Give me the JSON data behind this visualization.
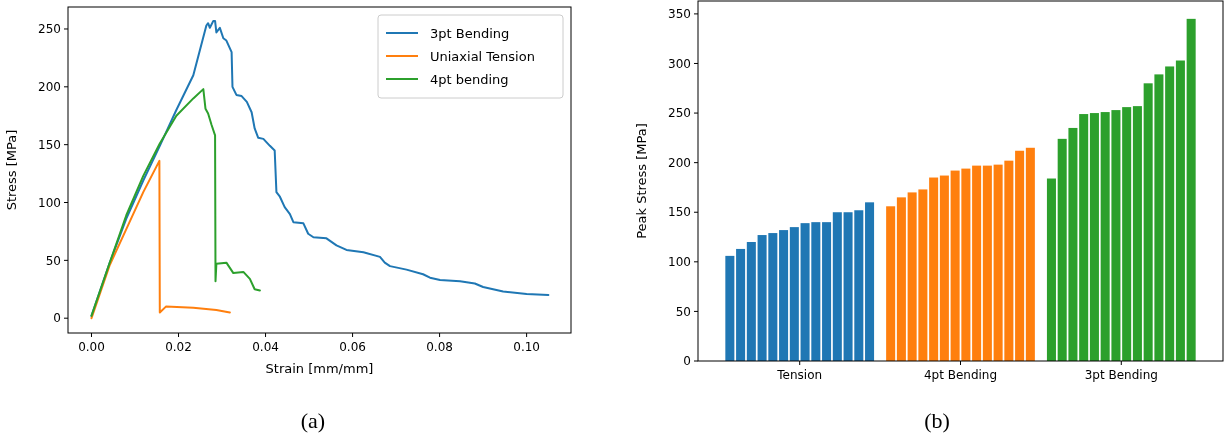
{
  "chart_data": [
    {
      "type": "line",
      "xlabel": "Strain [mm/mm]",
      "ylabel": "Stress [MPa]",
      "xlim": [
        -0.0054,
        0.1102
      ],
      "ylim": [
        -12.8,
        269
      ],
      "xticks": [
        {
          "value": 0,
          "label": "0.00"
        },
        {
          "value": 0.02,
          "label": "0.02"
        },
        {
          "value": 0.04,
          "label": "0.04"
        },
        {
          "value": 0.06,
          "label": "0.06"
        },
        {
          "value": 0.08,
          "label": "0.08"
        },
        {
          "value": 0.1,
          "label": "0.10"
        }
      ],
      "yticks": [
        0,
        50,
        100,
        150,
        200,
        250
      ],
      "legend": "top right",
      "annotations": [
        "(a)"
      ],
      "series": [
        {
          "name": "3pt Bending",
          "color": "#1f77b4",
          "x": [
            0,
            0.0042,
            0.008,
            0.0119,
            0.0157,
            0.0195,
            0.0234,
            0.0264,
            0.0268,
            0.0272,
            0.028,
            0.0284,
            0.0287,
            0.0295,
            0.0303,
            0.031,
            0.0322,
            0.0324,
            0.0333,
            0.0345,
            0.0357,
            0.0368,
            0.0375,
            0.0383,
            0.0395,
            0.041,
            0.0421,
            0.0425,
            0.0433,
            0.0444,
            0.0456,
            0.0464,
            0.0487,
            0.0498,
            0.051,
            0.054,
            0.0563,
            0.0586,
            0.0625,
            0.0663,
            0.0674,
            0.0686,
            0.0724,
            0.0762,
            0.0778,
            0.0801,
            0.0847,
            0.0881,
            0.09,
            0.0946,
            0.1,
            0.105
          ],
          "values": [
            2,
            48,
            86,
            119,
            149,
            180,
            210,
            253,
            255,
            251,
            257,
            257,
            247,
            251,
            242,
            240,
            230,
            200,
            193,
            192,
            187,
            178,
            164,
            156,
            155,
            149,
            145,
            109,
            105,
            96,
            90,
            83,
            82,
            73,
            70,
            69,
            63,
            59,
            57,
            53,
            48,
            45,
            42,
            38,
            35,
            33,
            32,
            30,
            27,
            23,
            21,
            20
          ]
        },
        {
          "name": "Uniaxial Tension",
          "color": "#ff7f0e",
          "x": [
            0,
            0.0042,
            0.008,
            0.0119,
            0.0156,
            0.0157,
            0.0171,
            0.0234,
            0.0287,
            0.0318
          ],
          "values": [
            0,
            46,
            77,
            109,
            136,
            5,
            10,
            9,
            7,
            5
          ]
        },
        {
          "name": "4pt bending",
          "color": "#2ca02c",
          "x": [
            0,
            0.0042,
            0.008,
            0.0119,
            0.0157,
            0.0195,
            0.0234,
            0.0257,
            0.0262,
            0.0268,
            0.0276,
            0.0284,
            0.0285,
            0.0287,
            0.031,
            0.0326,
            0.0349,
            0.0364,
            0.0375,
            0.0387
          ],
          "values": [
            2,
            48,
            89,
            123,
            151,
            175,
            190,
            198,
            181,
            177,
            167,
            158,
            32,
            47,
            48,
            39,
            40,
            34,
            25,
            24
          ]
        }
      ]
    },
    {
      "type": "bar",
      "ylabel": "Peak Stress [MPa]",
      "categories": [
        "Tension",
        "4pt Bending",
        "3pt Bending"
      ],
      "ylim": [
        0,
        363
      ],
      "yticks": [
        0,
        50,
        100,
        150,
        200,
        250,
        300,
        350
      ],
      "annotations": [
        "(b)"
      ],
      "series": [
        {
          "colors": [
            "#1f77b4",
            "#ff7f0e",
            "#2ca02c"
          ],
          "values": [
            106,
            156,
            184
          ]
        },
        {
          "colors": [
            "#1f77b4",
            "#ff7f0e",
            "#2ca02c"
          ],
          "values": [
            113,
            165,
            224
          ]
        },
        {
          "colors": [
            "#1f77b4",
            "#ff7f0e",
            "#2ca02c"
          ],
          "values": [
            120,
            170,
            235
          ]
        },
        {
          "colors": [
            "#1f77b4",
            "#ff7f0e",
            "#2ca02c"
          ],
          "values": [
            127,
            173,
            249
          ]
        },
        {
          "colors": [
            "#1f77b4",
            "#ff7f0e",
            "#2ca02c"
          ],
          "values": [
            129,
            185,
            250
          ]
        },
        {
          "colors": [
            "#1f77b4",
            "#ff7f0e",
            "#2ca02c"
          ],
          "values": [
            132,
            187,
            251
          ]
        },
        {
          "colors": [
            "#1f77b4",
            "#ff7f0e",
            "#2ca02c"
          ],
          "values": [
            135,
            192,
            253
          ]
        },
        {
          "colors": [
            "#1f77b4",
            "#ff7f0e",
            "#2ca02c"
          ],
          "values": [
            139,
            194,
            256
          ]
        },
        {
          "colors": [
            "#1f77b4",
            "#ff7f0e",
            "#2ca02c"
          ],
          "values": [
            140,
            197,
            257
          ]
        },
        {
          "colors": [
            "#1f77b4",
            "#ff7f0e",
            "#2ca02c"
          ],
          "values": [
            140,
            197,
            280
          ]
        },
        {
          "colors": [
            "#1f77b4",
            "#ff7f0e",
            "#2ca02c"
          ],
          "values": [
            150,
            198,
            289
          ]
        },
        {
          "colors": [
            "#1f77b4",
            "#ff7f0e",
            "#2ca02c"
          ],
          "values": [
            150,
            202,
            297
          ]
        },
        {
          "colors": [
            "#1f77b4",
            "#ff7f0e",
            "#2ca02c"
          ],
          "values": [
            152,
            212,
            303
          ]
        },
        {
          "colors": [
            "#1f77b4",
            "#ff7f0e",
            "#2ca02c"
          ],
          "values": [
            160,
            215,
            345
          ]
        }
      ]
    }
  ]
}
